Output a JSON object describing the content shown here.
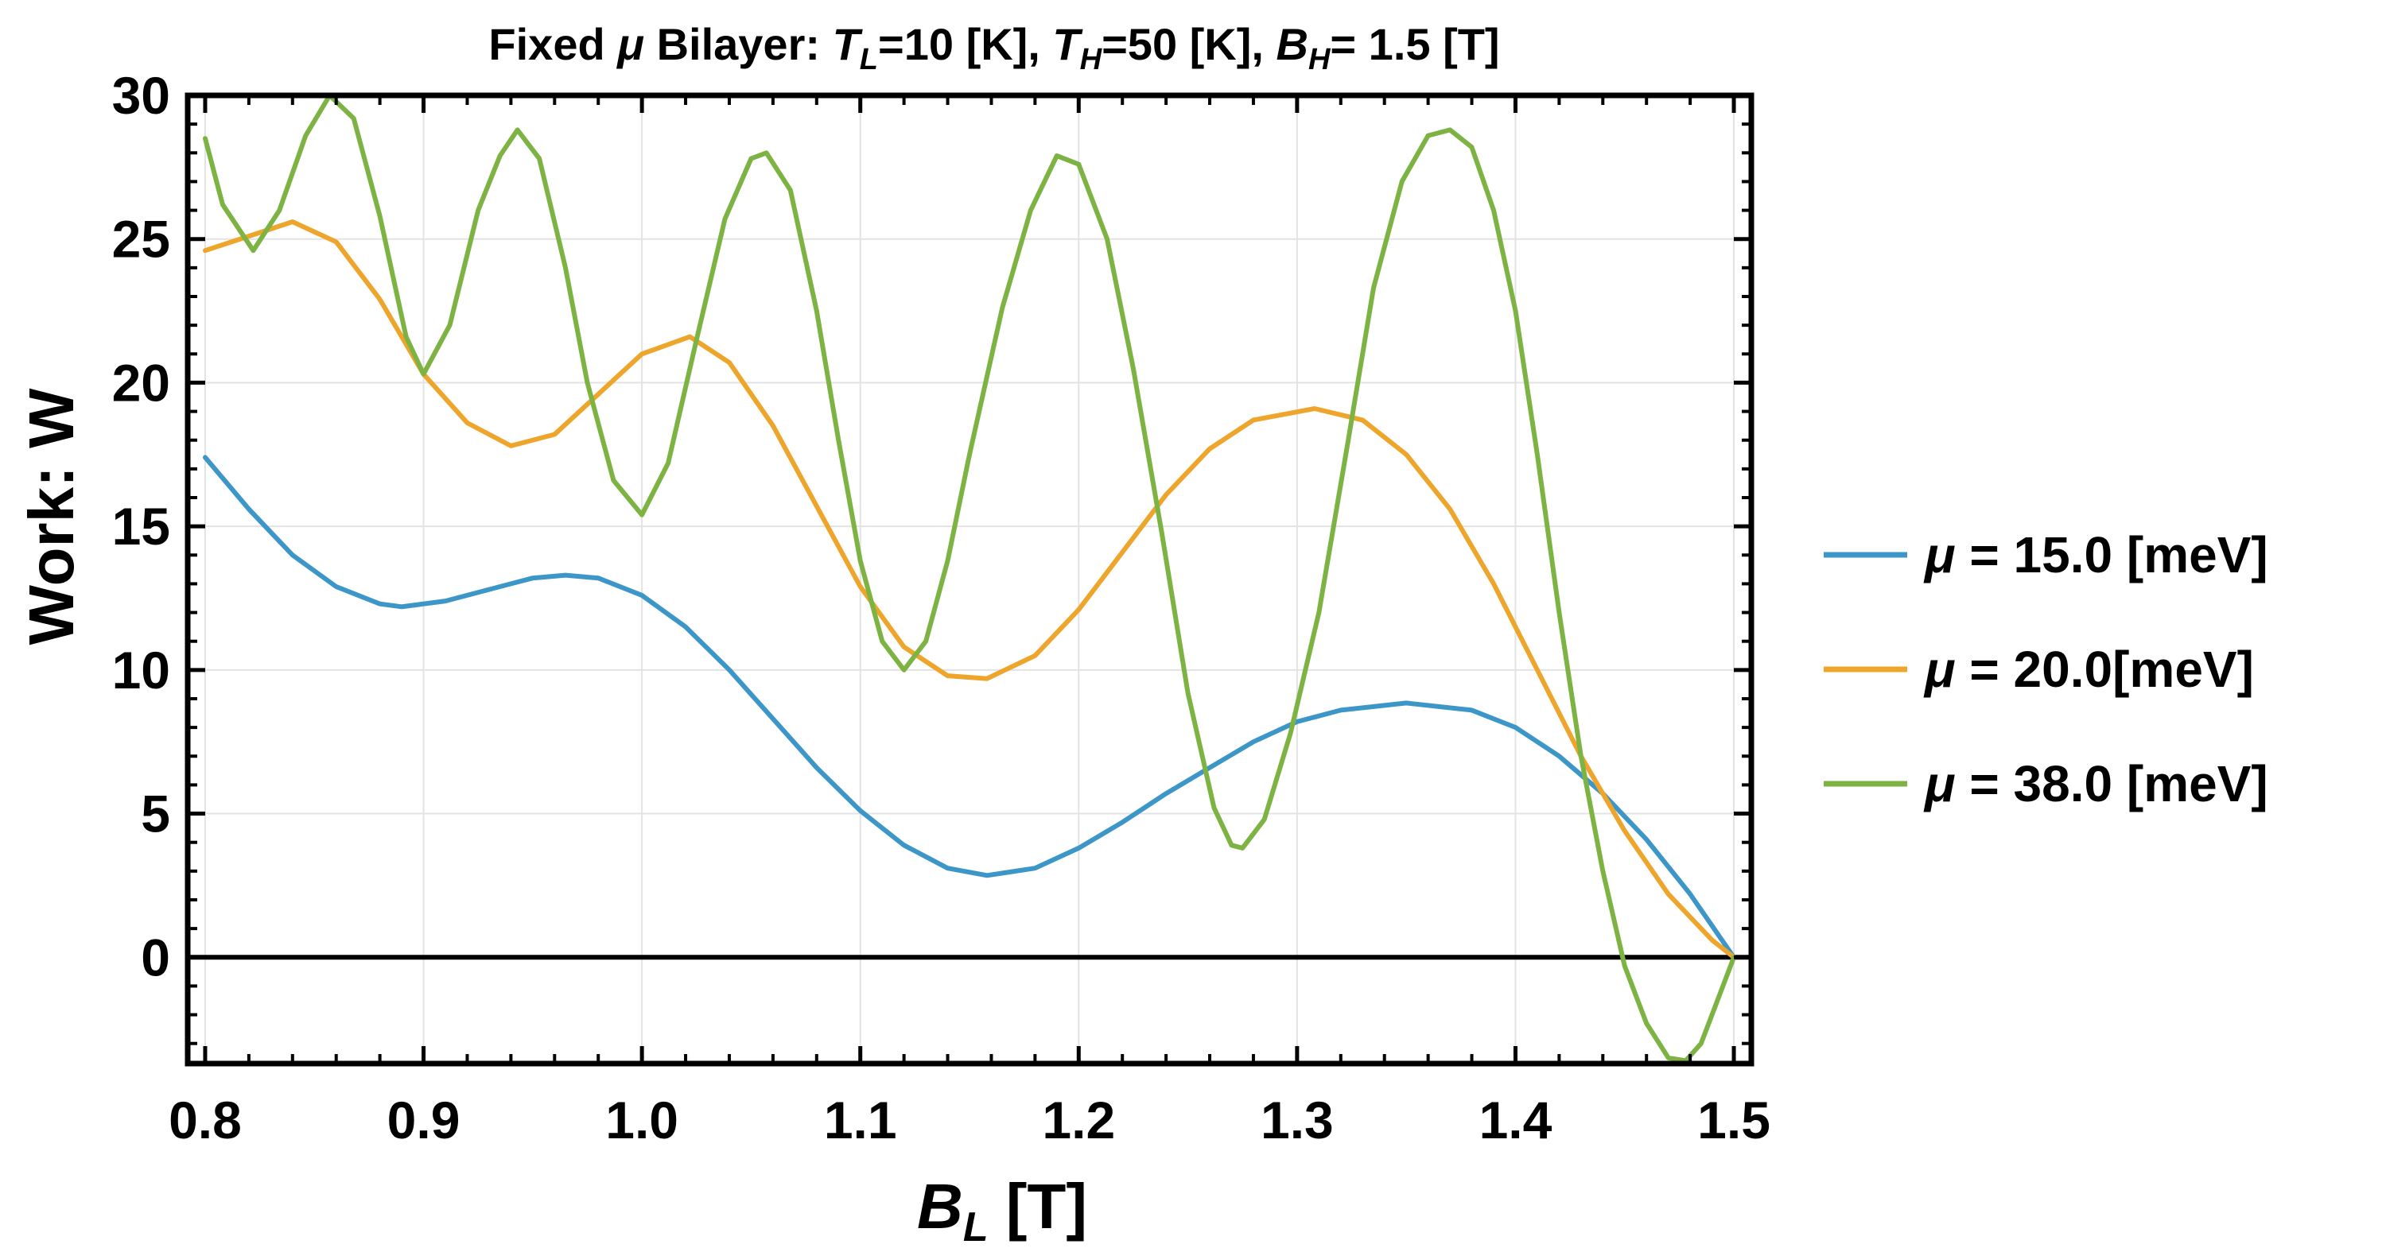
{
  "chart_data": {
    "type": "line",
    "title": {
      "prefix": "Fixed ",
      "mu": "μ",
      "middle": " Bilayer: ",
      "tl_sym": "T",
      "tl_sub": "L",
      "tl_val": "=10 [K], ",
      "th_sym": "T",
      "th_sub": "H",
      "th_val": "=50 [K], ",
      "bh_sym": "B",
      "bh_sub": "H",
      "bh_val": "= 1.5 [T]"
    },
    "xlabel": {
      "sym": "B",
      "sub": "L",
      "unit": " [T]"
    },
    "ylabel": "Work: W",
    "xlim": [
      0.792,
      1.508
    ],
    "ylim": [
      -3.7,
      30
    ],
    "xticks": [
      0.8,
      0.9,
      1.0,
      1.1,
      1.2,
      1.3,
      1.4,
      1.5
    ],
    "xtick_labels": [
      "0.8",
      "0.9",
      "1.0",
      "1.1",
      "1.2",
      "1.3",
      "1.4",
      "1.5"
    ],
    "yticks": [
      0,
      5,
      10,
      15,
      20,
      25,
      30
    ],
    "ytick_labels": [
      "0",
      "5",
      "10",
      "15",
      "20",
      "25",
      "30"
    ],
    "grid": true,
    "legend_position": "right",
    "series": [
      {
        "name": "μ = 15.0 [meV]",
        "mu": "μ",
        "rest": " = 15.0 [meV]",
        "color": "#3d96c8",
        "x": [
          0.8,
          0.82,
          0.84,
          0.86,
          0.88,
          0.89,
          0.91,
          0.93,
          0.95,
          0.965,
          0.98,
          1.0,
          1.02,
          1.04,
          1.06,
          1.08,
          1.1,
          1.12,
          1.14,
          1.158,
          1.18,
          1.2,
          1.22,
          1.24,
          1.26,
          1.28,
          1.3,
          1.32,
          1.35,
          1.38,
          1.4,
          1.42,
          1.44,
          1.46,
          1.48,
          1.5
        ],
        "y": [
          17.4,
          15.6,
          14.0,
          12.9,
          12.3,
          12.2,
          12.4,
          12.8,
          13.2,
          13.3,
          13.2,
          12.6,
          11.5,
          10.0,
          8.3,
          6.6,
          5.1,
          3.9,
          3.1,
          2.85,
          3.1,
          3.8,
          4.7,
          5.7,
          6.6,
          7.5,
          8.2,
          8.6,
          8.85,
          8.6,
          8.0,
          7.0,
          5.7,
          4.1,
          2.2,
          0.0
        ]
      },
      {
        "name": "μ = 20.0[meV]",
        "mu": "μ",
        "rest": " = 20.0[meV]",
        "color": "#eda52b",
        "x": [
          0.8,
          0.82,
          0.84,
          0.86,
          0.88,
          0.9,
          0.92,
          0.94,
          0.96,
          0.98,
          1.0,
          1.022,
          1.04,
          1.06,
          1.08,
          1.1,
          1.12,
          1.14,
          1.158,
          1.18,
          1.2,
          1.22,
          1.24,
          1.26,
          1.28,
          1.308,
          1.33,
          1.35,
          1.37,
          1.39,
          1.41,
          1.43,
          1.45,
          1.47,
          1.49,
          1.5
        ],
        "y": [
          24.6,
          25.1,
          25.6,
          24.9,
          22.9,
          20.3,
          18.6,
          17.8,
          18.2,
          19.6,
          21.0,
          21.6,
          20.7,
          18.5,
          15.7,
          12.9,
          10.8,
          9.8,
          9.7,
          10.5,
          12.1,
          14.1,
          16.1,
          17.7,
          18.7,
          19.1,
          18.7,
          17.5,
          15.6,
          13.0,
          10.0,
          7.0,
          4.4,
          2.2,
          0.6,
          0.0
        ]
      },
      {
        "name": "μ = 38.0 [meV]",
        "mu": "μ",
        "rest": " = 38.0 [meV]",
        "color": "#7cb342",
        "x": [
          0.8,
          0.808,
          0.822,
          0.834,
          0.846,
          0.857,
          0.868,
          0.88,
          0.892,
          0.9,
          0.912,
          0.925,
          0.935,
          0.943,
          0.953,
          0.965,
          0.975,
          0.987,
          1.0,
          1.012,
          1.025,
          1.038,
          1.05,
          1.057,
          1.068,
          1.08,
          1.09,
          1.1,
          1.11,
          1.12,
          1.13,
          1.14,
          1.15,
          1.165,
          1.178,
          1.19,
          1.2,
          1.213,
          1.225,
          1.238,
          1.25,
          1.262,
          1.27,
          1.275,
          1.285,
          1.297,
          1.31,
          1.323,
          1.335,
          1.348,
          1.36,
          1.37,
          1.38,
          1.39,
          1.4,
          1.41,
          1.42,
          1.43,
          1.44,
          1.45,
          1.46,
          1.47,
          1.478,
          1.485,
          1.492,
          1.5
        ],
        "y": [
          28.5,
          26.2,
          24.6,
          26.0,
          28.6,
          30.0,
          29.2,
          25.8,
          21.6,
          20.3,
          22.0,
          26.0,
          27.9,
          28.8,
          27.8,
          24.0,
          20.0,
          16.6,
          15.4,
          17.2,
          21.5,
          25.7,
          27.8,
          28.0,
          26.7,
          22.5,
          18.0,
          13.8,
          11.0,
          10.0,
          11.0,
          13.8,
          17.5,
          22.6,
          26.0,
          27.9,
          27.6,
          25.0,
          20.5,
          14.8,
          9.2,
          5.2,
          3.9,
          3.8,
          4.8,
          7.8,
          12.0,
          17.8,
          23.3,
          27.0,
          28.6,
          28.8,
          28.2,
          26.0,
          22.5,
          17.5,
          12.0,
          7.0,
          3.0,
          -0.3,
          -2.3,
          -3.5,
          -3.6,
          -3.0,
          -1.6,
          0.0
        ]
      }
    ]
  }
}
